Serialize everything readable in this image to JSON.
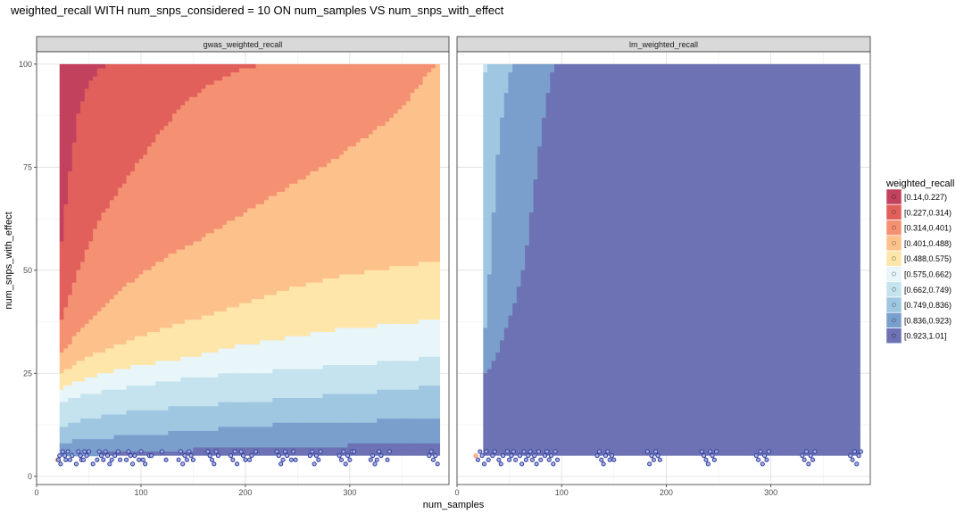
{
  "chart_data": {
    "type": "heatmap",
    "title": "weighted_recall WITH num_snps_considered = 10 ON num_samples VS num_snps_with_effect",
    "xlabel": "num_samples",
    "ylabel": "num_snps_with_effect",
    "xlim": [
      0,
      395
    ],
    "ylim": [
      -2,
      103
    ],
    "x_ticks": [
      0,
      100,
      200,
      300
    ],
    "y_ticks": [
      0,
      25,
      50,
      75,
      100
    ],
    "grid": true,
    "legend": {
      "title": "weighted_recall",
      "position": "right",
      "levels": [
        {
          "label": "[0.14,0.227)",
          "color": "#c2425e"
        },
        {
          "label": "[0.227,0.314)",
          "color": "#e2605b"
        },
        {
          "label": "[0.314,0.401)",
          "color": "#f59173"
        },
        {
          "label": "[0.401,0.488)",
          "color": "#fdc28c"
        },
        {
          "label": "[0.488,0.575)",
          "color": "#fee6aa"
        },
        {
          "label": "[0.575,0.662)",
          "color": "#e8f5f9"
        },
        {
          "label": "[0.662,0.749)",
          "color": "#c4e3ee"
        },
        {
          "label": "[0.749,0.836)",
          "color": "#9fc7e1"
        },
        {
          "label": "[0.836,0.923)",
          "color": "#7a9fcd"
        },
        {
          "label": "[0.923,1.01]",
          "color": "#6c72b4"
        }
      ]
    },
    "panels": [
      {
        "strip": "gwas_weighted_recall",
        "grid_x_range": [
          22,
          384
        ],
        "grid_y_range": [
          5,
          100
        ],
        "boundaries": [
          {
            "upper_level": 0,
            "points": [
              [
                22,
                53
              ],
              [
                30,
                70
              ],
              [
                40,
                88
              ],
              [
                50,
                95
              ],
              [
                60,
                99
              ],
              [
                70,
                100
              ]
            ]
          },
          {
            "upper_level": 1,
            "points": [
              [
                22,
                36
              ],
              [
                40,
                50
              ],
              [
                60,
                62
              ],
              [
                80,
                70
              ],
              [
                100,
                77
              ],
              [
                120,
                84
              ],
              [
                140,
                90
              ],
              [
                160,
                94
              ],
              [
                180,
                97
              ],
              [
                200,
                99
              ],
              [
                220,
                100
              ]
            ]
          },
          {
            "upper_level": 2,
            "points": [
              [
                22,
                29
              ],
              [
                50,
                38
              ],
              [
                80,
                45
              ],
              [
                100,
                49
              ],
              [
                130,
                54
              ],
              [
                160,
                58
              ],
              [
                200,
                64
              ],
              [
                240,
                70
              ],
              [
                280,
                76
              ],
              [
                320,
                83
              ],
              [
                350,
                89
              ],
              [
                370,
                96
              ],
              [
                384,
                100
              ]
            ]
          },
          {
            "upper_level": 3,
            "points": [
              [
                22,
                25
              ],
              [
                50,
                29
              ],
              [
                100,
                34
              ],
              [
                150,
                38
              ],
              [
                200,
                42
              ],
              [
                250,
                46
              ],
              [
                300,
                49
              ],
              [
                350,
                51
              ],
              [
                384,
                52
              ]
            ]
          },
          {
            "upper_level": 4,
            "points": [
              [
                22,
                21
              ],
              [
                50,
                24
              ],
              [
                100,
                27
              ],
              [
                150,
                29
              ],
              [
                200,
                32
              ],
              [
                250,
                34
              ],
              [
                300,
                36
              ],
              [
                350,
                37
              ],
              [
                384,
                38
              ]
            ]
          },
          {
            "upper_level": 5,
            "points": [
              [
                22,
                18
              ],
              [
                50,
                20
              ],
              [
                100,
                22
              ],
              [
                150,
                24
              ],
              [
                200,
                25
              ],
              [
                250,
                26
              ],
              [
                300,
                27
              ],
              [
                350,
                28
              ],
              [
                384,
                29
              ]
            ]
          },
          {
            "upper_level": 6,
            "points": [
              [
                22,
                12
              ],
              [
                50,
                14
              ],
              [
                100,
                16
              ],
              [
                150,
                17
              ],
              [
                200,
                18
              ],
              [
                250,
                19
              ],
              [
                300,
                20
              ],
              [
                350,
                21
              ],
              [
                384,
                22
              ]
            ]
          },
          {
            "upper_level": 7,
            "points": [
              [
                22,
                8
              ],
              [
                50,
                9
              ],
              [
                100,
                10
              ],
              [
                150,
                11
              ],
              [
                200,
                12
              ],
              [
                250,
                13
              ],
              [
                300,
                13
              ],
              [
                350,
                14
              ],
              [
                384,
                14
              ]
            ]
          },
          {
            "upper_level": 8,
            "points": [
              [
                22,
                5
              ],
              [
                100,
                6
              ],
              [
                200,
                7
              ],
              [
                300,
                7.5
              ],
              [
                384,
                8
              ]
            ]
          }
        ],
        "base_level": 9,
        "points_x": [
          20,
          21,
          22,
          23,
          25,
          27,
          28,
          30,
          32,
          34,
          38,
          40,
          42,
          43,
          45,
          46,
          48,
          50,
          54,
          58,
          60,
          62,
          64,
          66,
          68,
          70,
          72,
          75,
          78,
          80,
          86,
          88,
          90,
          92,
          94,
          98,
          100,
          102,
          104,
          108,
          110,
          120,
          124,
          136,
          138,
          140,
          142,
          144,
          146,
          148,
          150,
          164,
          166,
          168,
          170,
          172,
          174,
          186,
          188,
          190,
          192,
          196,
          198,
          200,
          204,
          206,
          210,
          230,
          232,
          234,
          236,
          238,
          240,
          244,
          246,
          248,
          262,
          264,
          266,
          268,
          270,
          272,
          290,
          292,
          294,
          296,
          298,
          300,
          302,
          304,
          320,
          322,
          324,
          326,
          328,
          330,
          336,
          338,
          376,
          378,
          380,
          382,
          384
        ],
        "points_y": [
          4,
          4,
          5,
          3,
          6,
          5,
          4,
          6,
          4,
          5,
          3,
          6,
          5,
          4,
          4,
          6,
          5,
          6,
          3,
          4,
          6,
          5,
          4,
          6,
          5,
          3,
          4,
          5,
          6,
          4,
          4,
          6,
          5,
          3,
          5,
          4,
          6,
          4,
          3,
          5,
          5,
          6,
          4,
          4,
          6,
          3,
          5,
          4,
          6,
          5,
          4,
          6,
          5,
          4,
          3,
          6,
          5,
          5,
          4,
          6,
          3,
          6,
          5,
          4,
          4,
          5,
          6,
          6,
          5,
          3,
          4,
          6,
          5,
          4,
          6,
          4,
          5,
          6,
          3,
          5,
          4,
          6,
          5,
          4,
          6,
          3,
          5,
          4,
          6,
          6,
          4,
          5,
          3,
          4,
          6,
          5,
          4,
          6,
          5,
          6,
          4,
          5,
          3
        ]
      },
      {
        "strip": "lm_weighted_recall",
        "grid_x_range": [
          25,
          384
        ],
        "grid_y_range": [
          5,
          100
        ],
        "boundaries": [
          {
            "upper_level": 6,
            "points": [
              [
                25,
                97
              ],
              [
                28,
                99
              ],
              [
                31,
                100
              ]
            ]
          },
          {
            "upper_level": 7,
            "points": [
              [
                25,
                30
              ],
              [
                30,
                45
              ],
              [
                34,
                60
              ],
              [
                38,
                75
              ],
              [
                42,
                85
              ],
              [
                46,
                92
              ],
              [
                50,
                97
              ],
              [
                54,
                100
              ]
            ]
          },
          {
            "upper_level": 8,
            "points": [
              [
                25,
                24
              ],
              [
                35,
                28
              ],
              [
                45,
                34
              ],
              [
                55,
                42
              ],
              [
                65,
                52
              ],
              [
                70,
                62
              ],
              [
                75,
                72
              ],
              [
                80,
                82
              ],
              [
                85,
                90
              ],
              [
                90,
                97
              ],
              [
                94,
                100
              ]
            ]
          }
        ],
        "base_level": 9,
        "points_x": [
          18,
          20,
          22,
          24,
          26,
          28,
          30,
          34,
          36,
          40,
          42,
          44,
          48,
          50,
          52,
          54,
          56,
          60,
          62,
          64,
          66,
          68,
          70,
          72,
          74,
          76,
          78,
          80,
          84,
          86,
          88,
          90,
          92,
          94,
          96,
          134,
          136,
          138,
          140,
          142,
          144,
          146,
          148,
          150,
          182,
          184,
          186,
          188,
          190,
          192,
          194,
          234,
          236,
          238,
          240,
          242,
          244,
          246,
          248,
          286,
          288,
          290,
          292,
          294,
          296,
          298,
          330,
          332,
          334,
          336,
          338,
          340,
          342,
          376,
          378,
          380,
          382,
          384,
          386
        ],
        "points_y": [
          5,
          4,
          6,
          5,
          3,
          6,
          4,
          5,
          6,
          4,
          3,
          5,
          6,
          4,
          5,
          6,
          4,
          5,
          3,
          6,
          4,
          5,
          6,
          4,
          5,
          3,
          6,
          4,
          5,
          6,
          4,
          5,
          3,
          6,
          4,
          5,
          6,
          4,
          3,
          5,
          6,
          4,
          5,
          4,
          6,
          3,
          5,
          4,
          6,
          5,
          4,
          6,
          5,
          4,
          3,
          6,
          5,
          4,
          6,
          5,
          4,
          6,
          3,
          5,
          4,
          6,
          5,
          4,
          6,
          3,
          5,
          4,
          6,
          5,
          4,
          6,
          3,
          5,
          6
        ]
      }
    ]
  }
}
